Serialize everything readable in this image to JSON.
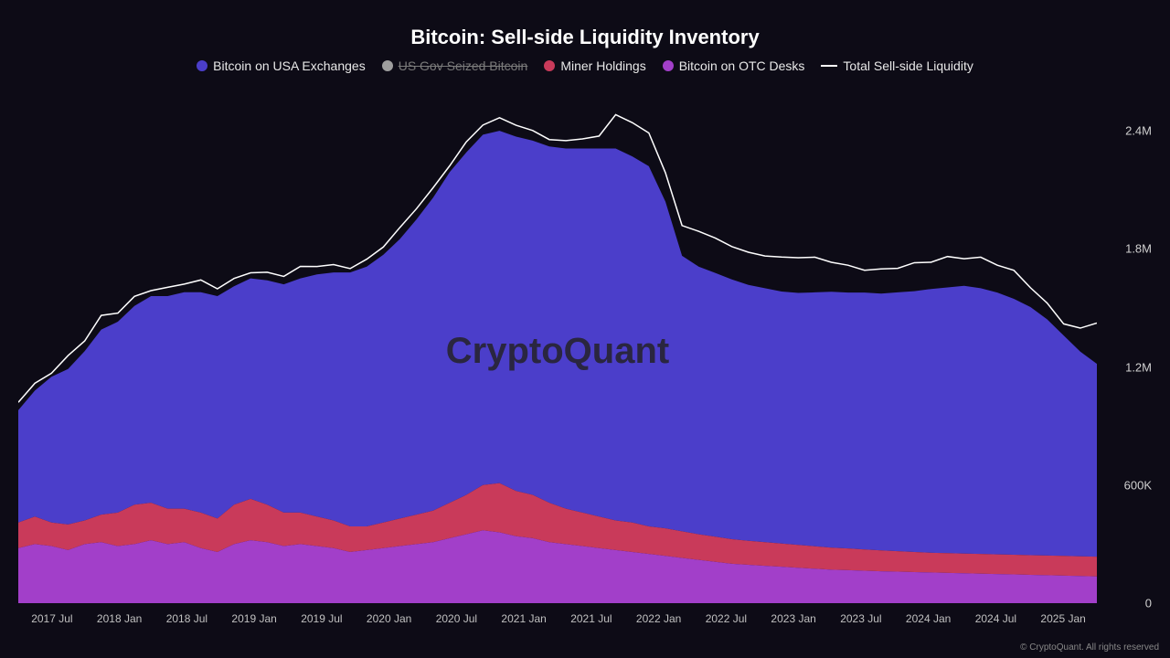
{
  "chart": {
    "type": "stacked-area-with-line",
    "title": "Bitcoin: Sell-side Liquidity Inventory",
    "watermark": "CryptoQuant",
    "copyright": "© CryptoQuant. All rights reserved",
    "background_color": "#0d0b16",
    "title_color": "#ffffff",
    "title_fontsize": 22,
    "legend_fontsize": 14,
    "axis_label_color": "#c0c0c0",
    "axis_fontsize": 12,
    "legend": [
      {
        "label": "Bitcoin on USA Exchanges",
        "color": "#4b3eca",
        "type": "area",
        "disabled": false
      },
      {
        "label": "US Gov Seized Bitcoin",
        "color": "#9e9e9e",
        "type": "area",
        "disabled": true
      },
      {
        "label": "Miner Holdings",
        "color": "#c93a5a",
        "type": "area",
        "disabled": false
      },
      {
        "label": "Bitcoin on OTC Desks",
        "color": "#a23fc9",
        "type": "area",
        "disabled": false
      },
      {
        "label": "Total Sell-side Liquidity",
        "color": "#ffffff",
        "type": "line",
        "disabled": false
      }
    ],
    "y_axis": {
      "min": 0,
      "max": 2600000,
      "ticks": [
        {
          "value": 0,
          "label": "0"
        },
        {
          "value": 600000,
          "label": "600K"
        },
        {
          "value": 1200000,
          "label": "1.2M"
        },
        {
          "value": 1800000,
          "label": "1.8M"
        },
        {
          "value": 2400000,
          "label": "2.4M"
        }
      ]
    },
    "x_axis": {
      "labels": [
        "2017 Jul",
        "2018 Jan",
        "2018 Jul",
        "2019 Jan",
        "2019 Jul",
        "2020 Jan",
        "2020 Jul",
        "2021 Jan",
        "2021 Jul",
        "2022 Jan",
        "2022 Jul",
        "2023 Jan",
        "2023 Jul",
        "2024 Jan",
        "2024 Jul",
        "2025 Jan"
      ]
    },
    "series": {
      "otc": {
        "color": "#a23fc9",
        "values": [
          280000,
          300000,
          290000,
          270000,
          300000,
          310000,
          290000,
          300000,
          320000,
          300000,
          310000,
          280000,
          260000,
          300000,
          320000,
          310000,
          290000,
          300000,
          290000,
          280000,
          260000,
          270000,
          280000,
          290000,
          300000,
          310000,
          330000,
          350000,
          370000,
          360000,
          340000,
          330000,
          310000,
          300000,
          290000,
          280000,
          270000,
          260000,
          250000,
          240000,
          230000,
          220000,
          210000,
          200000,
          195000,
          190000,
          185000,
          180000,
          175000,
          170000,
          168000,
          165000,
          162000,
          160000,
          158000,
          156000,
          154000,
          152000,
          150000,
          148000,
          146000,
          144000,
          142000,
          140000,
          138000,
          136000
        ]
      },
      "miner": {
        "color": "#c93a5a",
        "values": [
          130000,
          140000,
          120000,
          130000,
          120000,
          140000,
          170000,
          200000,
          190000,
          180000,
          170000,
          180000,
          170000,
          200000,
          210000,
          190000,
          170000,
          160000,
          150000,
          140000,
          130000,
          120000,
          130000,
          140000,
          150000,
          160000,
          180000,
          200000,
          230000,
          250000,
          230000,
          220000,
          200000,
          180000,
          170000,
          160000,
          150000,
          150000,
          140000,
          140000,
          135000,
          130000,
          128000,
          125000,
          122000,
          120000,
          118000,
          116000,
          114000,
          112000,
          110000,
          108000,
          106000,
          104000,
          102000,
          100000,
          100000,
          100000,
          100000,
          100000,
          100000,
          100000,
          100000,
          100000,
          100000,
          100000
        ]
      },
      "usa_exchanges": {
        "color": "#4b3eca",
        "values": [
          570000,
          640000,
          740000,
          790000,
          860000,
          940000,
          970000,
          1010000,
          1050000,
          1080000,
          1100000,
          1120000,
          1130000,
          1110000,
          1120000,
          1140000,
          1160000,
          1190000,
          1230000,
          1260000,
          1290000,
          1320000,
          1360000,
          1420000,
          1500000,
          1590000,
          1680000,
          1740000,
          1780000,
          1790000,
          1800000,
          1800000,
          1810000,
          1830000,
          1850000,
          1870000,
          1890000,
          1860000,
          1830000,
          1660000,
          1400000,
          1360000,
          1340000,
          1320000,
          1300000,
          1290000,
          1280000,
          1280000,
          1290000,
          1300000,
          1300000,
          1305000,
          1305000,
          1315000,
          1325000,
          1340000,
          1350000,
          1360000,
          1350000,
          1330000,
          1300000,
          1260000,
          1200000,
          1120000,
          1040000,
          980000
        ]
      },
      "total_line": {
        "color": "#ffffff",
        "values": [
          1020000,
          1120000,
          1190000,
          1250000,
          1330000,
          1440000,
          1480000,
          1560000,
          1610000,
          1600000,
          1620000,
          1620000,
          1600000,
          1650000,
          1700000,
          1680000,
          1660000,
          1690000,
          1710000,
          1720000,
          1720000,
          1750000,
          1810000,
          1890000,
          2000000,
          2110000,
          2240000,
          2350000,
          2430000,
          2450000,
          2420000,
          2400000,
          2370000,
          2360000,
          2360000,
          2360000,
          2470000,
          2440000,
          2400000,
          2200000,
          1920000,
          1880000,
          1840000,
          1810000,
          1790000,
          1780000,
          1760000,
          1750000,
          1740000,
          1730000,
          1720000,
          1710000,
          1700000,
          1700000,
          1710000,
          1730000,
          1760000,
          1770000,
          1760000,
          1720000,
          1670000,
          1600000,
          1520000,
          1440000,
          1400000,
          1430000
        ]
      }
    }
  }
}
